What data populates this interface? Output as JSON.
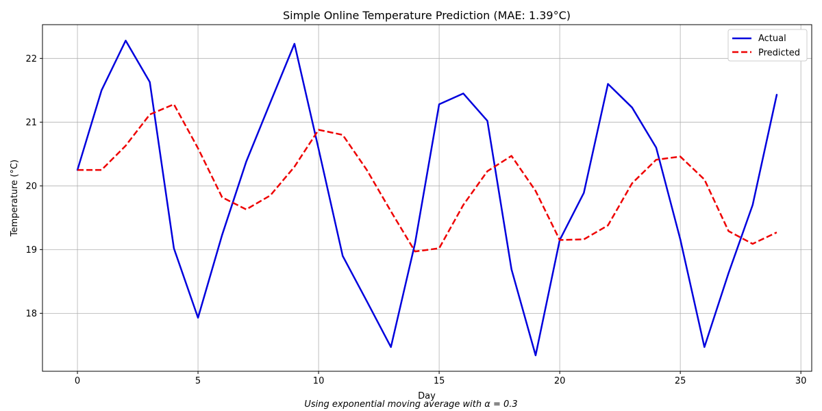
{
  "chart_data": {
    "type": "line",
    "title": "Simple Online Temperature Prediction (MAE: 1.39°C)",
    "xlabel": "Day",
    "ylabel": "Temperature (°C)",
    "caption": "Using exponential moving average with α = 0.3",
    "xlim": [
      -1.45,
      30.45
    ],
    "ylim": [
      17.09,
      22.53
    ],
    "xticks": [
      0,
      5,
      10,
      15,
      20,
      25,
      30
    ],
    "yticks": [
      18,
      19,
      20,
      21,
      22
    ],
    "grid": true,
    "legend_position": "top-right",
    "x": [
      0,
      1,
      2,
      3,
      4,
      5,
      6,
      7,
      8,
      9,
      10,
      11,
      12,
      13,
      14,
      15,
      16,
      17,
      18,
      19,
      20,
      21,
      22,
      23,
      24,
      25,
      26,
      27,
      28,
      29
    ],
    "series": [
      {
        "name": "Actual",
        "color": "#0000dd",
        "style": "solid",
        "values": [
          20.25,
          21.5,
          22.28,
          21.63,
          19.02,
          17.93,
          19.23,
          20.38,
          21.31,
          22.23,
          20.58,
          18.9,
          18.19,
          17.47,
          19.1,
          21.28,
          21.45,
          21.02,
          18.69,
          17.34,
          19.15,
          19.89,
          21.6,
          21.23,
          20.6,
          19.16,
          17.47,
          18.63,
          19.7,
          21.43
        ]
      },
      {
        "name": "Predicted",
        "color": "#ee0000",
        "style": "dashed",
        "values": [
          20.25,
          20.25,
          20.63,
          21.12,
          21.28,
          20.59,
          19.82,
          19.63,
          19.85,
          20.3,
          20.88,
          20.8,
          20.25,
          19.6,
          18.97,
          19.02,
          19.7,
          20.23,
          20.47,
          19.92,
          19.15,
          19.16,
          19.38,
          20.04,
          20.41,
          20.46,
          20.1,
          19.29,
          19.09,
          19.27
        ]
      }
    ]
  }
}
